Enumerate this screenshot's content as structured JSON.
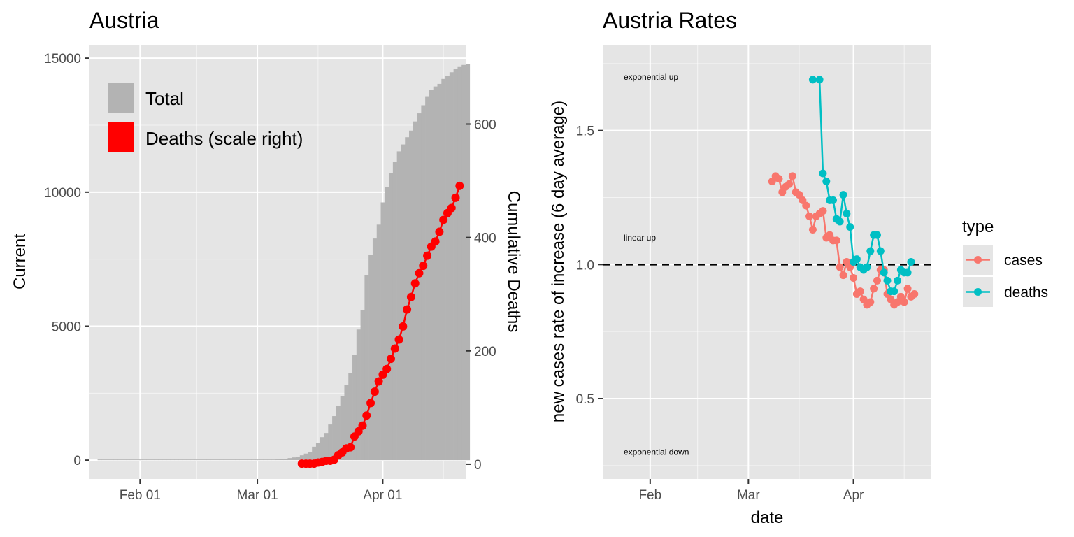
{
  "colors": {
    "panel_bg": "#e5e5e5",
    "grid_major": "#ffffff",
    "bar_fill": "#b3b3b3",
    "deaths_red": "#ff0000",
    "cases": "#f8766d",
    "deaths": "#00bfc4",
    "tick_text": "#4d4d4d"
  },
  "chart_data": [
    {
      "type": "bar",
      "title": "Austria",
      "ylabel": "Current",
      "y2label": "Cumulative Deaths",
      "xlabel": "",
      "x_tick_labels": [
        "Feb 01",
        "Mar 01",
        "Apr 01"
      ],
      "y_tick_labels": [
        "0",
        "5000",
        "10000",
        "15000"
      ],
      "y2_tick_labels": [
        "0",
        "200",
        "400",
        "600"
      ],
      "ylim": [
        -700,
        15500
      ],
      "y2lim": [
        -26,
        740
      ],
      "grid": true,
      "legend_position": "top-left inside",
      "legend": [
        {
          "label": "Total",
          "color": "#b3b3b3"
        },
        {
          "label": "Deaths (scale right)",
          "color": "#ff0000"
        }
      ],
      "dates": {
        "start": "2020-01-22",
        "end": "2020-04-19",
        "x_ticks": [
          "2020-02-01",
          "2020-03-01",
          "2020-04-01"
        ]
      },
      "total_cases": [
        0,
        0,
        0,
        0,
        0,
        0,
        0,
        0,
        0,
        0,
        0,
        0,
        0,
        0,
        0,
        0,
        0,
        0,
        0,
        0,
        0,
        0,
        0,
        0,
        0,
        0,
        0,
        0,
        0,
        0,
        0,
        0,
        0,
        0,
        0,
        0,
        2,
        2,
        3,
        3,
        9,
        14,
        18,
        21,
        29,
        41,
        55,
        79,
        104,
        131,
        182,
        246,
        302,
        504,
        655,
        860,
        1018,
        1332,
        1646,
        2013,
        2388,
        2814,
        3244,
        3924,
        4876,
        5588,
        6909,
        7657,
        8271,
        8788,
        9618,
        10180,
        10711,
        11129,
        11524,
        11781,
        12051,
        12297,
        12639,
        12942,
        13244,
        13555,
        13806,
        13945,
        14041,
        14226,
        14336,
        14476,
        14595,
        14671,
        14749,
        14795
      ],
      "deaths_series": {
        "start": "2020-03-12",
        "values": [
          1,
          1,
          1,
          1,
          3,
          4,
          6,
          6,
          8,
          16,
          21,
          28,
          30,
          49,
          58,
          68,
          86,
          108,
          128,
          146,
          158,
          168,
          186,
          204,
          220,
          243,
          273,
          295,
          319,
          337,
          350,
          368,
          384,
          393,
          410,
          431,
          443,
          452,
          470,
          491
        ]
      }
    },
    {
      "type": "line",
      "title": "Austria Rates",
      "xlabel": "date",
      "ylabel": "new cases rate of increase (6 day average)",
      "x_tick_labels": [
        "Feb",
        "Mar",
        "Apr"
      ],
      "y_tick_labels": [
        "0.5",
        "1.0",
        "1.5"
      ],
      "ylim": [
        0.2,
        1.82
      ],
      "grid": true,
      "reference_line": {
        "y": 1.0,
        "style": "dashed"
      },
      "annotations": [
        {
          "text": "exponential up",
          "y": 1.7
        },
        {
          "text": "linear up",
          "y": 1.1
        },
        {
          "text": "exponential down",
          "y": 0.3
        }
      ],
      "legend_position": "right",
      "legend_title": "type",
      "dates": {
        "x_ticks": [
          "2020-02-01",
          "2020-03-01",
          "2020-04-01"
        ]
      },
      "series": [
        {
          "name": "cases",
          "color": "#f8766d",
          "start": "2020-03-08",
          "values": [
            1.31,
            1.33,
            1.32,
            1.27,
            1.29,
            1.3,
            1.33,
            1.27,
            1.26,
            1.24,
            1.22,
            1.18,
            1.13,
            1.18,
            1.19,
            1.2,
            1.1,
            1.11,
            1.09,
            1.09,
            0.99,
            0.96,
            1.01,
            0.99,
            0.95,
            0.89,
            0.9,
            0.87,
            0.85,
            0.86,
            0.91,
            0.94,
            0.98,
            0.98,
            0.89,
            0.87,
            0.85,
            0.86,
            0.88,
            0.86,
            0.91,
            0.88,
            0.89
          ]
        },
        {
          "name": "deaths",
          "color": "#00bfc4",
          "start": "2020-03-20",
          "values": [
            1.69,
            null,
            1.69,
            1.34,
            1.31,
            1.24,
            1.24,
            1.17,
            1.16,
            1.26,
            1.19,
            1.14,
            1.01,
            1.02,
            0.99,
            0.98,
            0.99,
            1.05,
            1.11,
            1.11,
            1.05,
            0.97,
            0.94,
            0.9,
            0.9,
            0.94,
            0.98,
            0.97,
            0.97,
            1.01
          ]
        }
      ]
    }
  ]
}
